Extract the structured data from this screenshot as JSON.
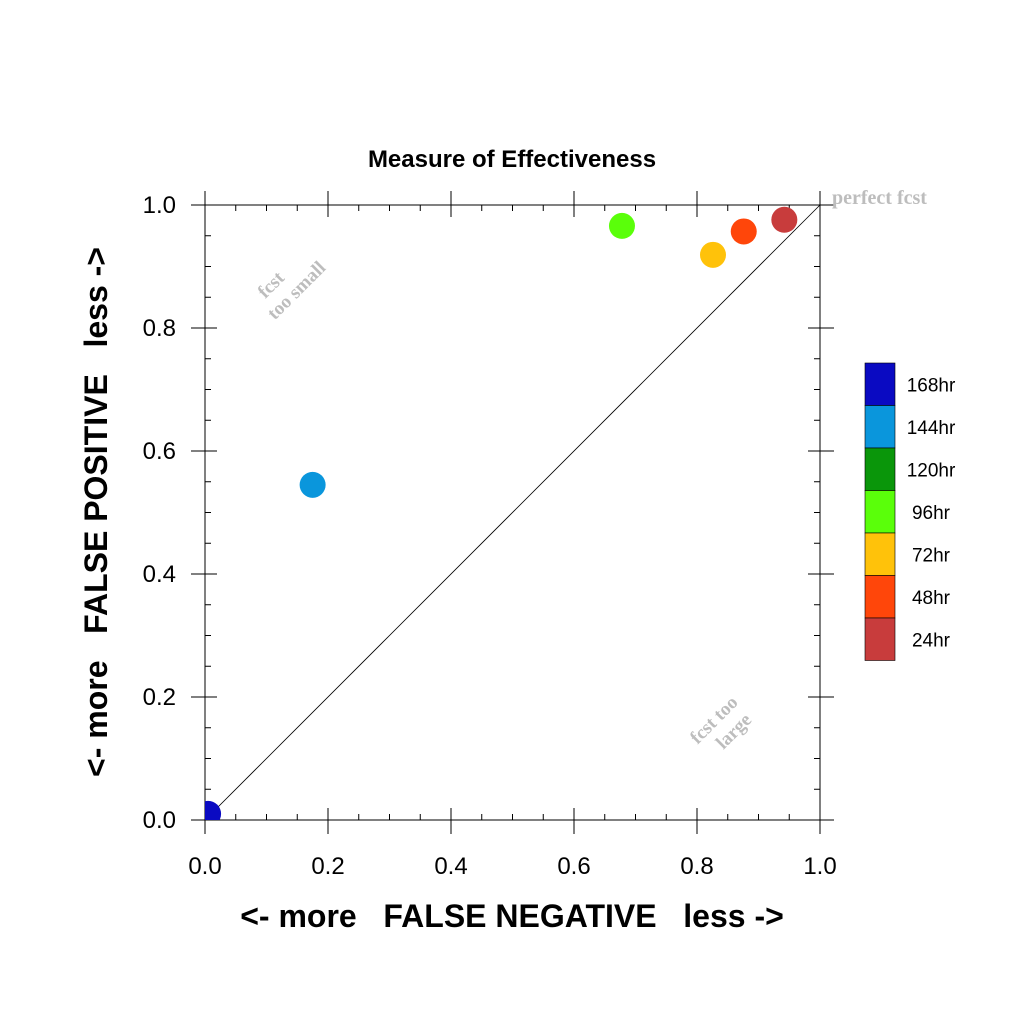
{
  "chart_data": {
    "type": "scatter",
    "title": "Measure of Effectiveness",
    "xlabel": "<- more   FALSE NEGATIVE   less ->",
    "ylabel": "<- more   FALSE POSITIVE   less ->",
    "xlim": [
      0.0,
      1.0
    ],
    "ylim": [
      0.0,
      1.0
    ],
    "x_ticks": [
      "0.0",
      "0.2",
      "0.4",
      "0.6",
      "0.8",
      "1.0"
    ],
    "y_ticks": [
      "0.0",
      "0.2",
      "0.4",
      "0.6",
      "0.8",
      "1.0"
    ],
    "grid": false,
    "legend_position": "right",
    "reference_line": {
      "from": [
        0,
        0
      ],
      "to": [
        1,
        1
      ]
    },
    "annotations": {
      "perfect": "perfect fcst",
      "too_small_line1": "fcst",
      "too_small_line2": "too small",
      "too_large_line1": "fcst too",
      "too_large_line2": "large"
    },
    "series": [
      {
        "name": "168hr",
        "color": "#0a0ac2",
        "x": 0.005,
        "y": 0.01
      },
      {
        "name": "144hr",
        "color": "#0a96dc",
        "x": 0.175,
        "y": 0.545
      },
      {
        "name": "120hr",
        "color": "#0a960a",
        "x": null,
        "y": null
      },
      {
        "name": "96hr",
        "color": "#5aff0a",
        "x": 0.678,
        "y": 0.966
      },
      {
        "name": "72hr",
        "color": "#ffc20a",
        "x": 0.826,
        "y": 0.919
      },
      {
        "name": "48hr",
        "color": "#ff460a",
        "x": 0.876,
        "y": 0.957
      },
      {
        "name": "24hr",
        "color": "#c83c3c",
        "x": 0.942,
        "y": 0.976
      }
    ]
  }
}
